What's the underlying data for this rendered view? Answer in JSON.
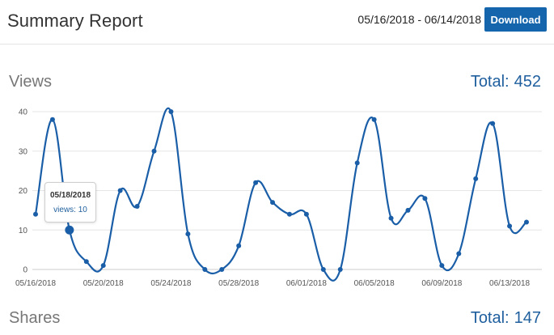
{
  "header": {
    "title": "Summary Report",
    "date_range": "05/16/2018 - 06/14/2018",
    "download_label": "Download"
  },
  "views": {
    "title": "Views",
    "total_label": "Total:",
    "total_value": "452"
  },
  "shares": {
    "title": "Shares",
    "total_label": "Total:",
    "total_value": "147"
  },
  "tooltip": {
    "date": "05/18/2018",
    "label": "views: 10"
  },
  "colors": {
    "accent": "#1565ad",
    "line": "#1a5ea8",
    "grid": "#e6e6e6"
  },
  "chart_data": {
    "type": "line",
    "title": "",
    "xlabel": "",
    "ylabel": "",
    "x": [
      "05/16/2018",
      "05/17/2018",
      "05/18/2018",
      "05/19/2018",
      "05/20/2018",
      "05/21/2018",
      "05/22/2018",
      "05/23/2018",
      "05/24/2018",
      "05/25/2018",
      "05/26/2018",
      "05/27/2018",
      "05/28/2018",
      "05/29/2018",
      "05/30/2018",
      "05/31/2018",
      "06/01/2018",
      "06/02/2018",
      "06/03/2018",
      "06/04/2018",
      "06/05/2018",
      "06/06/2018",
      "06/07/2018",
      "06/08/2018",
      "06/09/2018",
      "06/10/2018",
      "06/11/2018",
      "06/12/2018",
      "06/13/2018",
      "06/14/2018"
    ],
    "x_tick_labels": [
      "05/16/2018",
      "05/20/2018",
      "05/24/2018",
      "05/28/2018",
      "06/01/2018",
      "06/05/2018",
      "06/09/2018",
      "06/13/2018"
    ],
    "x_tick_indices": [
      0,
      4,
      8,
      12,
      16,
      20,
      24,
      28
    ],
    "y_ticks": [
      0,
      10,
      20,
      30,
      40
    ],
    "ylim": [
      0,
      40
    ],
    "grid": true,
    "legend": "none",
    "highlight_index": 2,
    "series": [
      {
        "values": [
          14,
          38,
          10,
          2,
          1,
          20,
          16,
          30,
          40,
          9,
          0,
          0,
          6,
          22,
          17,
          14,
          14,
          0,
          0,
          27,
          38,
          13,
          15,
          18,
          1,
          4,
          23,
          37,
          11,
          12
        ]
      }
    ]
  }
}
